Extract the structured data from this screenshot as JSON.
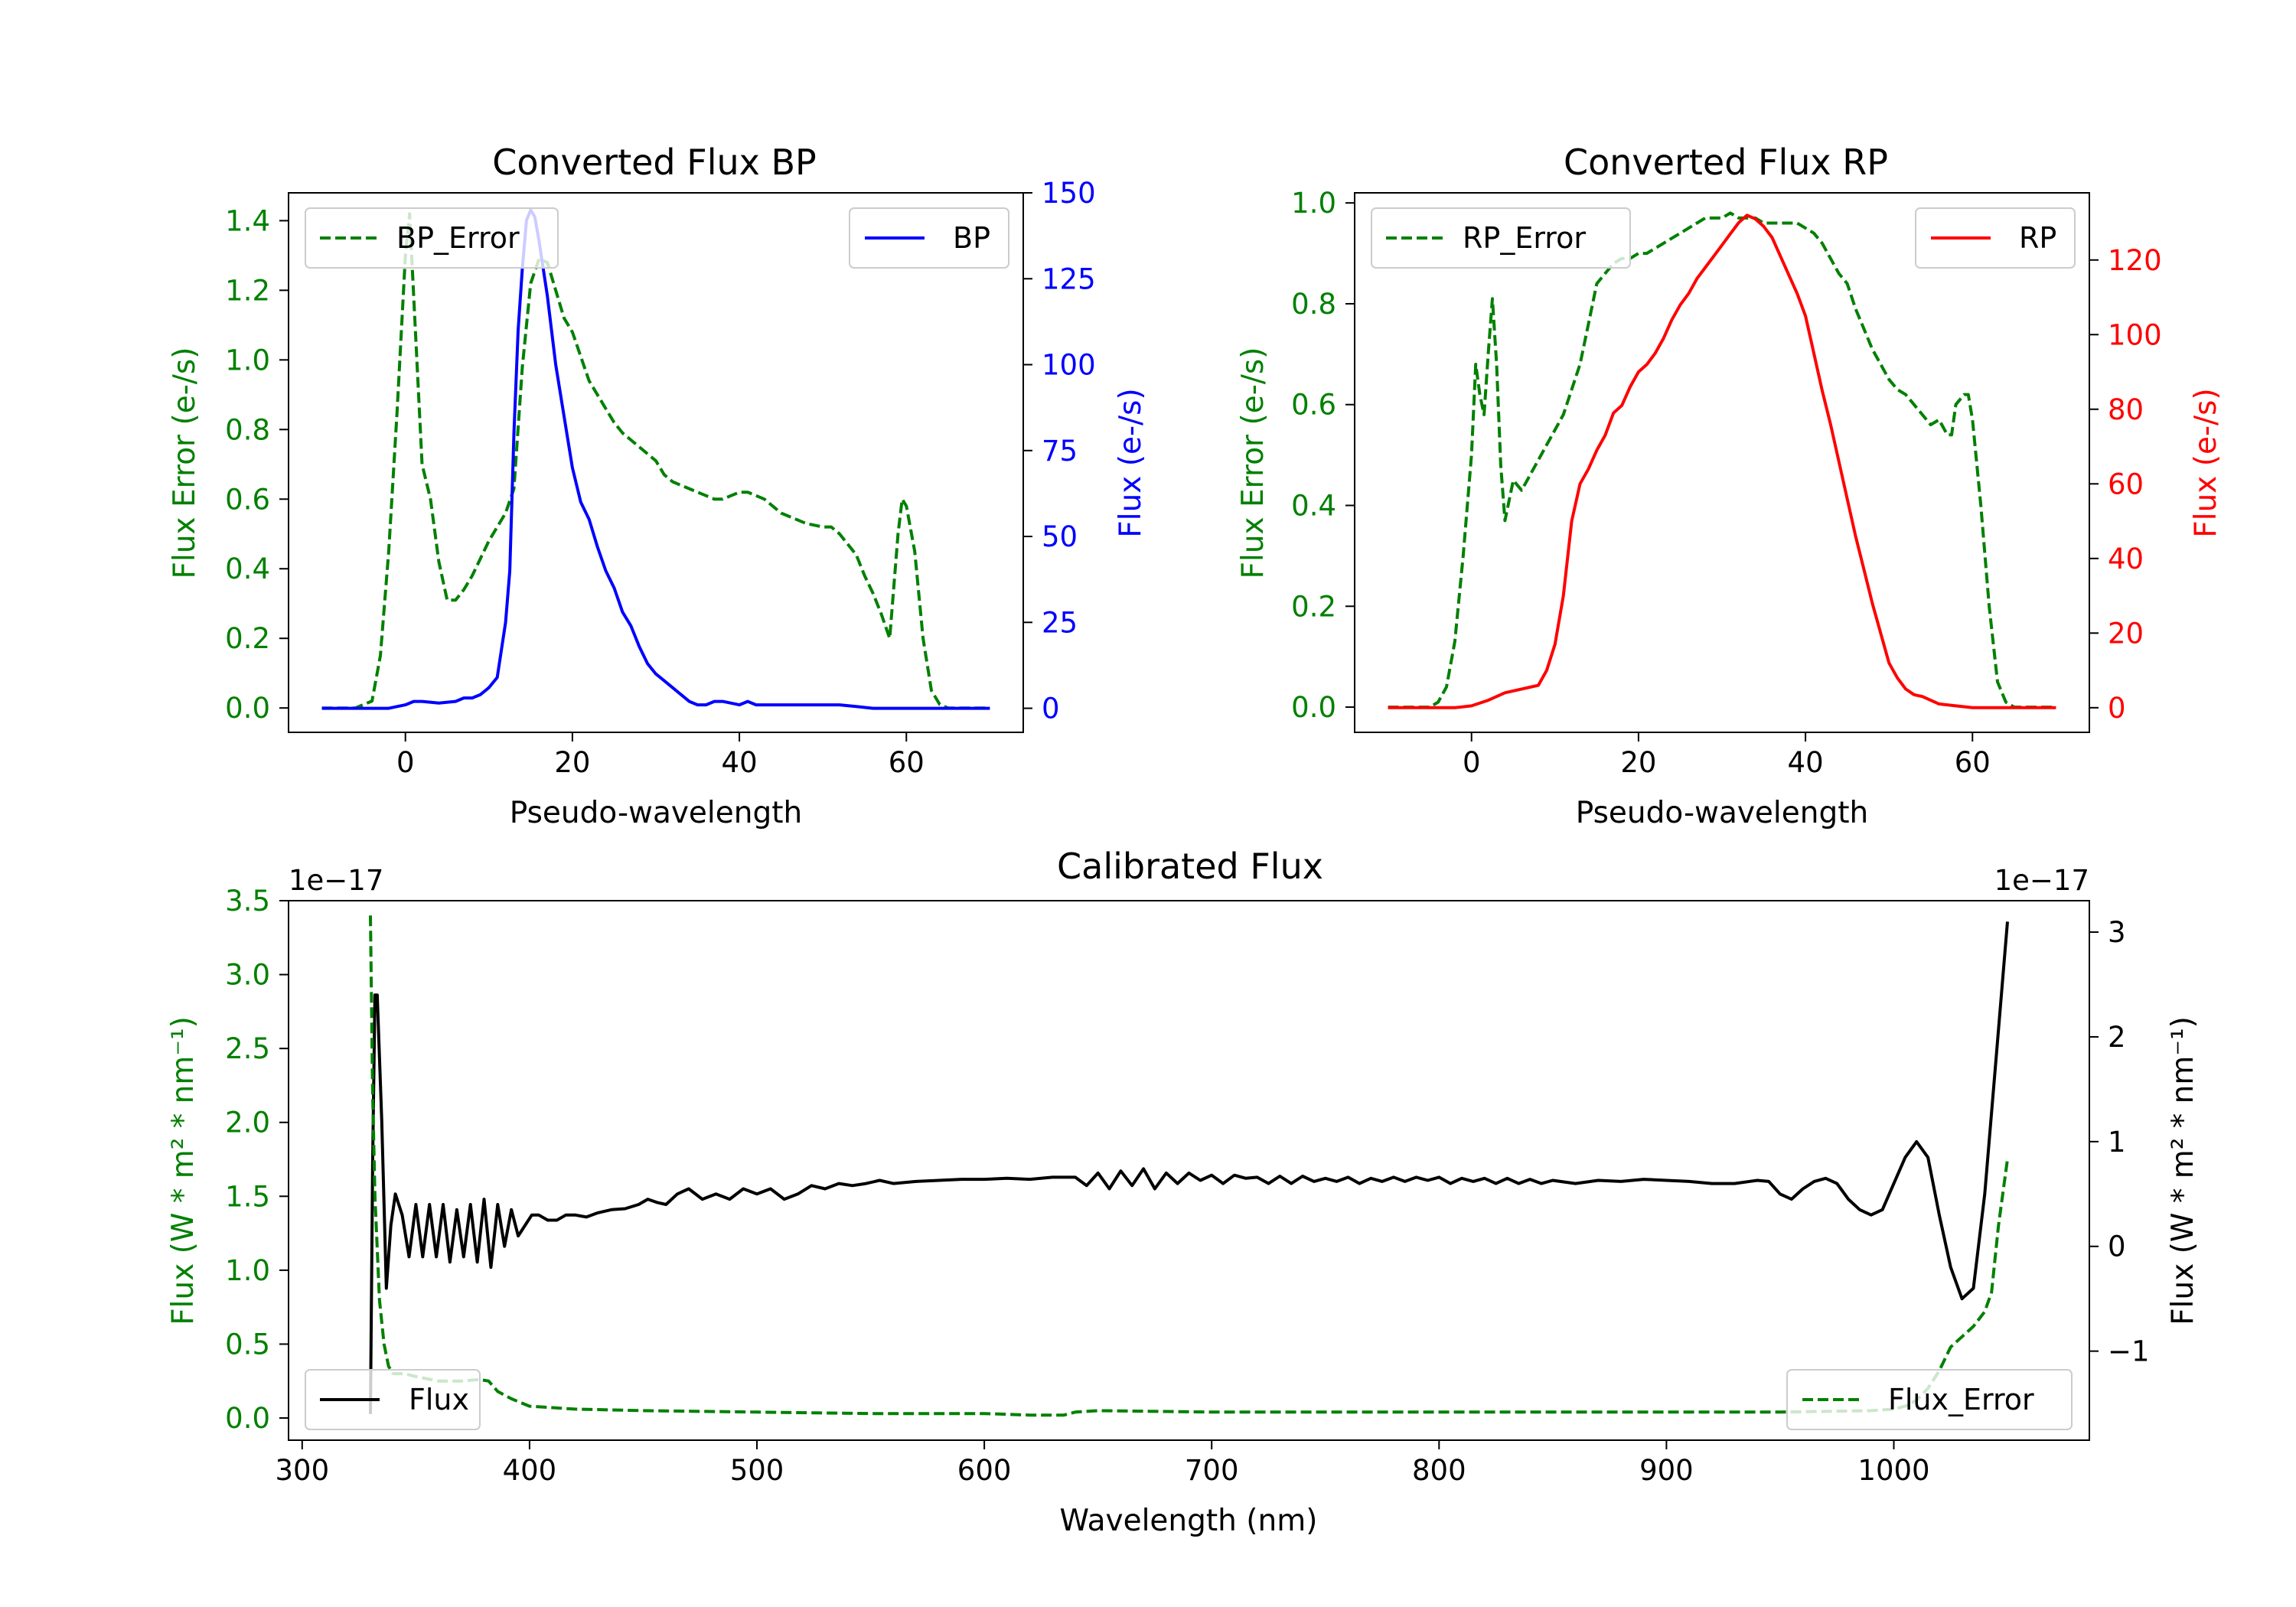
{
  "colors": {
    "green": "#008000",
    "blue": "#0000ff",
    "red": "#ff0000",
    "black": "#000000"
  },
  "chart_data": [
    {
      "id": "bp",
      "type": "line",
      "title": "Converted Flux BP",
      "xlabel": "Pseudo-wavelength",
      "xlim": [
        -14,
        74
      ],
      "xticks": [
        0,
        20,
        40,
        60
      ],
      "left_axis": {
        "label": "Flux Error (e-/s)",
        "color": "#008000",
        "ylim": [
          -0.07,
          1.48
        ],
        "ticks": [
          0.0,
          0.2,
          0.4,
          0.6,
          0.8,
          1.0,
          1.2,
          1.4
        ],
        "tick_decimals": 1
      },
      "right_axis": {
        "label": "Flux (e-/s)",
        "color": "#0000ff",
        "ylim": [
          -7,
          150
        ],
        "ticks": [
          0,
          25,
          50,
          75,
          100,
          125,
          150
        ],
        "tick_decimals": 0
      },
      "series": [
        {
          "name": "BP_Error",
          "axis": "left",
          "color": "#008000",
          "style": "dashed",
          "x": [
            -10,
            -6,
            -4,
            -3,
            -2,
            -1,
            0,
            0.5,
            1,
            2,
            3,
            4,
            5,
            6,
            7,
            8,
            9,
            10,
            11,
            12,
            13,
            14,
            15,
            16,
            17,
            18,
            19,
            20,
            21,
            22,
            23,
            24,
            25,
            26,
            27,
            28,
            30,
            31,
            32,
            33,
            34,
            35,
            36,
            37,
            38,
            39,
            40,
            41,
            42,
            43,
            44,
            45,
            46,
            48,
            50,
            51,
            52,
            53,
            54,
            55,
            56,
            57,
            58,
            59,
            59.5,
            60,
            61,
            62,
            63,
            64,
            65,
            67,
            70
          ],
          "values": [
            0.0,
            0.0,
            0.02,
            0.15,
            0.45,
            0.85,
            1.3,
            1.42,
            1.18,
            0.7,
            0.6,
            0.42,
            0.31,
            0.31,
            0.34,
            0.38,
            0.43,
            0.48,
            0.52,
            0.56,
            0.63,
            0.98,
            1.22,
            1.29,
            1.28,
            1.2,
            1.12,
            1.08,
            1.01,
            0.94,
            0.9,
            0.86,
            0.82,
            0.79,
            0.77,
            0.75,
            0.71,
            0.67,
            0.65,
            0.64,
            0.63,
            0.62,
            0.61,
            0.6,
            0.6,
            0.61,
            0.62,
            0.62,
            0.61,
            0.6,
            0.58,
            0.56,
            0.55,
            0.53,
            0.52,
            0.52,
            0.5,
            0.47,
            0.44,
            0.38,
            0.33,
            0.27,
            0.2,
            0.5,
            0.6,
            0.58,
            0.45,
            0.2,
            0.05,
            0.01,
            0.0,
            0.0,
            0.0
          ]
        },
        {
          "name": "BP",
          "axis": "right",
          "color": "#0000ff",
          "style": "solid",
          "x": [
            -10,
            -5,
            -2,
            0,
            1,
            2,
            4,
            6,
            7,
            8,
            9,
            10,
            11,
            12,
            12.5,
            13,
            13.5,
            14,
            14.5,
            15,
            15.5,
            16,
            17,
            18,
            19,
            20,
            21,
            22,
            23,
            24,
            25,
            26,
            27,
            28,
            29,
            30,
            31,
            32,
            33,
            34,
            35,
            36,
            37,
            38,
            40,
            41,
            42,
            44,
            46,
            48,
            50,
            52,
            54,
            56,
            60,
            65,
            70
          ],
          "values": [
            0,
            0,
            0,
            1,
            2,
            2,
            1.5,
            2,
            3,
            3,
            4,
            6,
            9,
            25,
            40,
            80,
            110,
            128,
            142,
            145,
            143,
            136,
            120,
            100,
            85,
            70,
            60,
            55,
            47,
            40,
            35,
            28,
            24,
            18,
            13,
            10,
            8,
            6,
            4,
            2,
            1,
            1,
            2,
            2,
            1,
            2,
            1,
            1,
            1,
            1,
            1,
            1,
            0.5,
            0,
            0,
            0,
            0
          ]
        }
      ]
    },
    {
      "id": "rp",
      "type": "line",
      "title": "Converted Flux RP",
      "xlabel": "Pseudo-wavelength",
      "xlim": [
        -14,
        74
      ],
      "xticks": [
        0,
        20,
        40,
        60
      ],
      "left_axis": {
        "label": "Flux Error (e-/s)",
        "color": "#008000",
        "ylim": [
          -0.05,
          1.02
        ],
        "ticks": [
          0.0,
          0.2,
          0.4,
          0.6,
          0.8,
          1.0
        ],
        "tick_decimals": 1
      },
      "right_axis": {
        "label": "Flux (e-/s)",
        "color": "#ff0000",
        "ylim": [
          -6.6,
          138
        ],
        "ticks": [
          0,
          20,
          40,
          60,
          80,
          100,
          120
        ],
        "tick_decimals": 0
      },
      "series": [
        {
          "name": "RP_Error",
          "axis": "left",
          "color": "#008000",
          "style": "dashed",
          "x": [
            -10,
            -5,
            -4,
            -3,
            -2,
            -1,
            0,
            0.5,
            1,
            1.5,
            2,
            2.5,
            3,
            3.5,
            4,
            5,
            6,
            7,
            8,
            9,
            10,
            11,
            12,
            13,
            14,
            15,
            16,
            17,
            18,
            19,
            20,
            21,
            22,
            23,
            24,
            25,
            26,
            27,
            28,
            29,
            30,
            31,
            32,
            33,
            34,
            35,
            36,
            37,
            38,
            39,
            40,
            41,
            42,
            43,
            44,
            45,
            46,
            47,
            48,
            49,
            50,
            51,
            52,
            53,
            54,
            55,
            56,
            57,
            57.5,
            58,
            59,
            59.5,
            60,
            61,
            62,
            63,
            64,
            65,
            67,
            70
          ],
          "values": [
            0.0,
            0.0,
            0.01,
            0.04,
            0.13,
            0.3,
            0.5,
            0.68,
            0.62,
            0.58,
            0.7,
            0.81,
            0.68,
            0.48,
            0.37,
            0.45,
            0.43,
            0.46,
            0.49,
            0.52,
            0.55,
            0.58,
            0.63,
            0.68,
            0.76,
            0.84,
            0.86,
            0.88,
            0.89,
            0.89,
            0.9,
            0.9,
            0.91,
            0.92,
            0.93,
            0.94,
            0.95,
            0.96,
            0.97,
            0.97,
            0.97,
            0.98,
            0.97,
            0.97,
            0.97,
            0.96,
            0.96,
            0.96,
            0.96,
            0.96,
            0.95,
            0.94,
            0.92,
            0.89,
            0.86,
            0.84,
            0.79,
            0.75,
            0.71,
            0.68,
            0.65,
            0.63,
            0.62,
            0.6,
            0.58,
            0.56,
            0.57,
            0.54,
            0.54,
            0.6,
            0.62,
            0.62,
            0.57,
            0.4,
            0.2,
            0.05,
            0.01,
            0.0,
            0.0,
            0.0
          ]
        },
        {
          "name": "RP",
          "axis": "right",
          "color": "#ff0000",
          "style": "solid",
          "x": [
            -10,
            -5,
            -2,
            0,
            2,
            4,
            6,
            7,
            8,
            9,
            10,
            11,
            12,
            13,
            14,
            15,
            16,
            17,
            18,
            19,
            20,
            21,
            22,
            23,
            24,
            25,
            26,
            27,
            28,
            29,
            30,
            31,
            32,
            33,
            34,
            35,
            36,
            37,
            38,
            39,
            40,
            41,
            42,
            43,
            44,
            45,
            46,
            47,
            48,
            49,
            50,
            51,
            52,
            53,
            54,
            55,
            56,
            58,
            60,
            65,
            70
          ],
          "values": [
            0,
            0,
            0,
            0.5,
            2,
            4,
            5,
            5.5,
            6,
            10,
            17,
            30,
            50,
            60,
            64,
            69,
            73,
            79,
            81,
            86,
            90,
            92,
            95,
            99,
            104,
            108,
            111,
            115,
            118,
            121,
            124,
            127,
            130,
            132,
            131,
            129,
            126,
            121,
            116,
            111,
            105,
            95,
            85,
            76,
            66,
            56,
            46,
            37,
            28,
            20,
            12,
            8,
            5,
            3.5,
            3,
            2,
            1,
            0.5,
            0,
            0,
            0
          ]
        }
      ]
    },
    {
      "id": "calibrated",
      "type": "line",
      "title": "Calibrated Flux",
      "xlabel": "Wavelength (nm)",
      "xlim": [
        294,
        1086
      ],
      "xticks": [
        300,
        400,
        500,
        600,
        700,
        800,
        900,
        1000
      ],
      "left_axis": {
        "label": "Flux (W * m² * nm⁻¹)",
        "color": "#008000",
        "ylim": [
          -0.15,
          3.5
        ],
        "ticks": [
          0.0,
          0.5,
          1.0,
          1.5,
          2.0,
          2.5,
          3.0,
          3.5
        ],
        "tick_decimals": 1,
        "offset_text": "1e−17"
      },
      "right_axis": {
        "label": "Flux (W * m² * nm⁻¹)",
        "color": "#000000",
        "ylim": [
          -1.85,
          3.3
        ],
        "ticks": [
          -1,
          0,
          1,
          2,
          3
        ],
        "tick_decimals": 0,
        "offset_text": "1e−17"
      },
      "series": [
        {
          "name": "Flux",
          "axis": "right",
          "color": "#000000",
          "style": "solid",
          "x": [
            330,
            331,
            332,
            333,
            335,
            337,
            339,
            341,
            344,
            347,
            350,
            353,
            356,
            359,
            362,
            365,
            368,
            371,
            374,
            377,
            380,
            383,
            386,
            389,
            392,
            395,
            398,
            401,
            404,
            408,
            412,
            416,
            420,
            425,
            430,
            436,
            442,
            448,
            452,
            456,
            460,
            465,
            470,
            476,
            482,
            488,
            494,
            500,
            506,
            512,
            518,
            524,
            530,
            536,
            542,
            548,
            554,
            560,
            570,
            580,
            590,
            600,
            610,
            620,
            630,
            640,
            645,
            650,
            655,
            660,
            665,
            670,
            675,
            680,
            685,
            690,
            695,
            700,
            705,
            710,
            715,
            720,
            725,
            730,
            735,
            740,
            745,
            750,
            755,
            760,
            765,
            770,
            775,
            780,
            785,
            790,
            795,
            800,
            805,
            810,
            815,
            820,
            825,
            830,
            835,
            840,
            845,
            850,
            860,
            870,
            880,
            890,
            900,
            910,
            920,
            930,
            940,
            945,
            950,
            955,
            960,
            965,
            970,
            975,
            980,
            985,
            990,
            995,
            1000,
            1005,
            1010,
            1015,
            1020,
            1025,
            1030,
            1035,
            1040,
            1045,
            1050
          ],
          "values": [
            -1.6,
            0.8,
            2.4,
            2.4,
            1.2,
            -0.4,
            0.2,
            0.5,
            0.3,
            -0.1,
            0.4,
            -0.1,
            0.4,
            -0.1,
            0.4,
            -0.15,
            0.35,
            -0.1,
            0.4,
            -0.15,
            0.45,
            -0.2,
            0.4,
            0.0,
            0.35,
            0.1,
            0.2,
            0.3,
            0.3,
            0.25,
            0.25,
            0.3,
            0.3,
            0.28,
            0.32,
            0.35,
            0.36,
            0.4,
            0.45,
            0.42,
            0.4,
            0.5,
            0.55,
            0.45,
            0.5,
            0.45,
            0.55,
            0.5,
            0.55,
            0.45,
            0.5,
            0.58,
            0.55,
            0.6,
            0.58,
            0.6,
            0.63,
            0.6,
            0.62,
            0.63,
            0.64,
            0.64,
            0.65,
            0.64,
            0.66,
            0.66,
            0.58,
            0.7,
            0.55,
            0.72,
            0.58,
            0.74,
            0.55,
            0.7,
            0.6,
            0.7,
            0.63,
            0.68,
            0.6,
            0.68,
            0.65,
            0.66,
            0.6,
            0.67,
            0.6,
            0.67,
            0.62,
            0.65,
            0.62,
            0.66,
            0.6,
            0.65,
            0.62,
            0.66,
            0.62,
            0.66,
            0.63,
            0.66,
            0.6,
            0.65,
            0.62,
            0.65,
            0.6,
            0.65,
            0.6,
            0.64,
            0.6,
            0.63,
            0.6,
            0.63,
            0.62,
            0.64,
            0.63,
            0.62,
            0.6,
            0.6,
            0.63,
            0.62,
            0.5,
            0.45,
            0.55,
            0.62,
            0.65,
            0.6,
            0.45,
            0.35,
            0.3,
            0.35,
            0.6,
            0.85,
            1.0,
            0.85,
            0.3,
            -0.2,
            -0.5,
            -0.4,
            0.5,
            1.8,
            3.1
          ]
        },
        {
          "name": "Flux_Error",
          "axis": "left",
          "color": "#008000",
          "style": "dashed",
          "x": [
            330,
            331,
            332,
            334,
            336,
            338,
            340,
            345,
            350,
            360,
            370,
            378,
            382,
            386,
            392,
            400,
            420,
            450,
            500,
            550,
            600,
            620,
            635,
            640,
            650,
            700,
            750,
            800,
            850,
            900,
            950,
            990,
            1000,
            1005,
            1010,
            1015,
            1020,
            1025,
            1030,
            1035,
            1040,
            1043,
            1046,
            1050
          ],
          "values": [
            3.4,
            2.2,
            1.5,
            0.8,
            0.5,
            0.35,
            0.3,
            0.3,
            0.28,
            0.25,
            0.25,
            0.26,
            0.25,
            0.18,
            0.13,
            0.08,
            0.06,
            0.05,
            0.04,
            0.03,
            0.03,
            0.02,
            0.02,
            0.04,
            0.05,
            0.04,
            0.04,
            0.04,
            0.04,
            0.04,
            0.04,
            0.05,
            0.06,
            0.08,
            0.12,
            0.2,
            0.32,
            0.48,
            0.55,
            0.62,
            0.72,
            0.85,
            1.3,
            1.75
          ]
        }
      ]
    }
  ],
  "legends": {
    "bp": {
      "left_label": "BP_Error",
      "right_label": "BP"
    },
    "rp": {
      "left_label": "RP_Error",
      "right_label": "RP"
    },
    "calibrated": {
      "left_label": "Flux",
      "right_label": "Flux_Error"
    }
  }
}
